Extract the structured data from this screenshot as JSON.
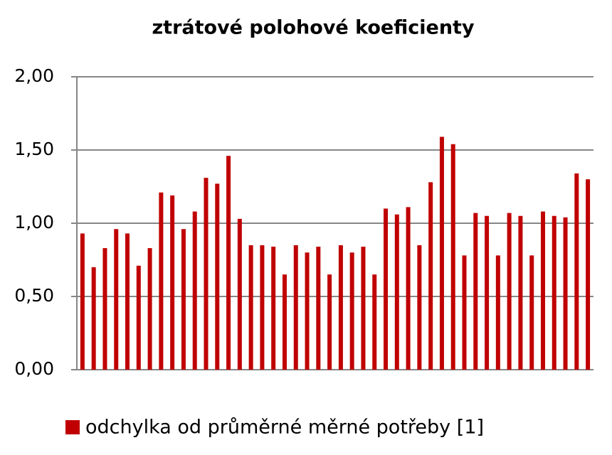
{
  "chart_data": {
    "type": "bar",
    "title": "ztrátové polohové koeficienty",
    "categories": [
      null,
      null,
      null,
      null,
      null,
      null,
      null,
      null,
      null,
      null,
      null,
      null,
      null,
      null,
      null,
      null,
      null,
      null,
      null,
      null,
      null,
      null,
      null,
      null,
      null,
      null,
      null,
      null,
      null,
      null,
      null,
      null,
      null,
      null,
      null,
      null,
      null,
      null,
      null,
      null,
      null,
      null,
      null,
      null,
      null,
      null
    ],
    "series": [
      {
        "name": "odchylka od průměrné měrné potřeby [1]",
        "color": "#c00000",
        "values": [
          0.93,
          0.7,
          0.83,
          0.96,
          0.93,
          0.71,
          0.83,
          1.21,
          1.19,
          0.96,
          1.08,
          1.31,
          1.27,
          1.46,
          1.03,
          0.85,
          0.85,
          0.84,
          0.65,
          0.85,
          0.8,
          0.84,
          0.65,
          0.85,
          0.8,
          0.84,
          0.65,
          1.1,
          1.06,
          1.11,
          0.85,
          1.28,
          1.59,
          1.54,
          0.78,
          1.07,
          1.05,
          0.78,
          1.07,
          1.05,
          0.78,
          1.08,
          1.05,
          1.04,
          1.34,
          1.3
        ]
      }
    ],
    "ylim": [
      0,
      2
    ],
    "yticks": [
      {
        "value": 0,
        "label": "0,00"
      },
      {
        "value": 0.5,
        "label": "0,50"
      },
      {
        "value": 1,
        "label": "1,00"
      },
      {
        "value": 1.5,
        "label": "1,50"
      },
      {
        "value": 2,
        "label": "2,00"
      }
    ],
    "grid": true,
    "legend": "bottom"
  }
}
